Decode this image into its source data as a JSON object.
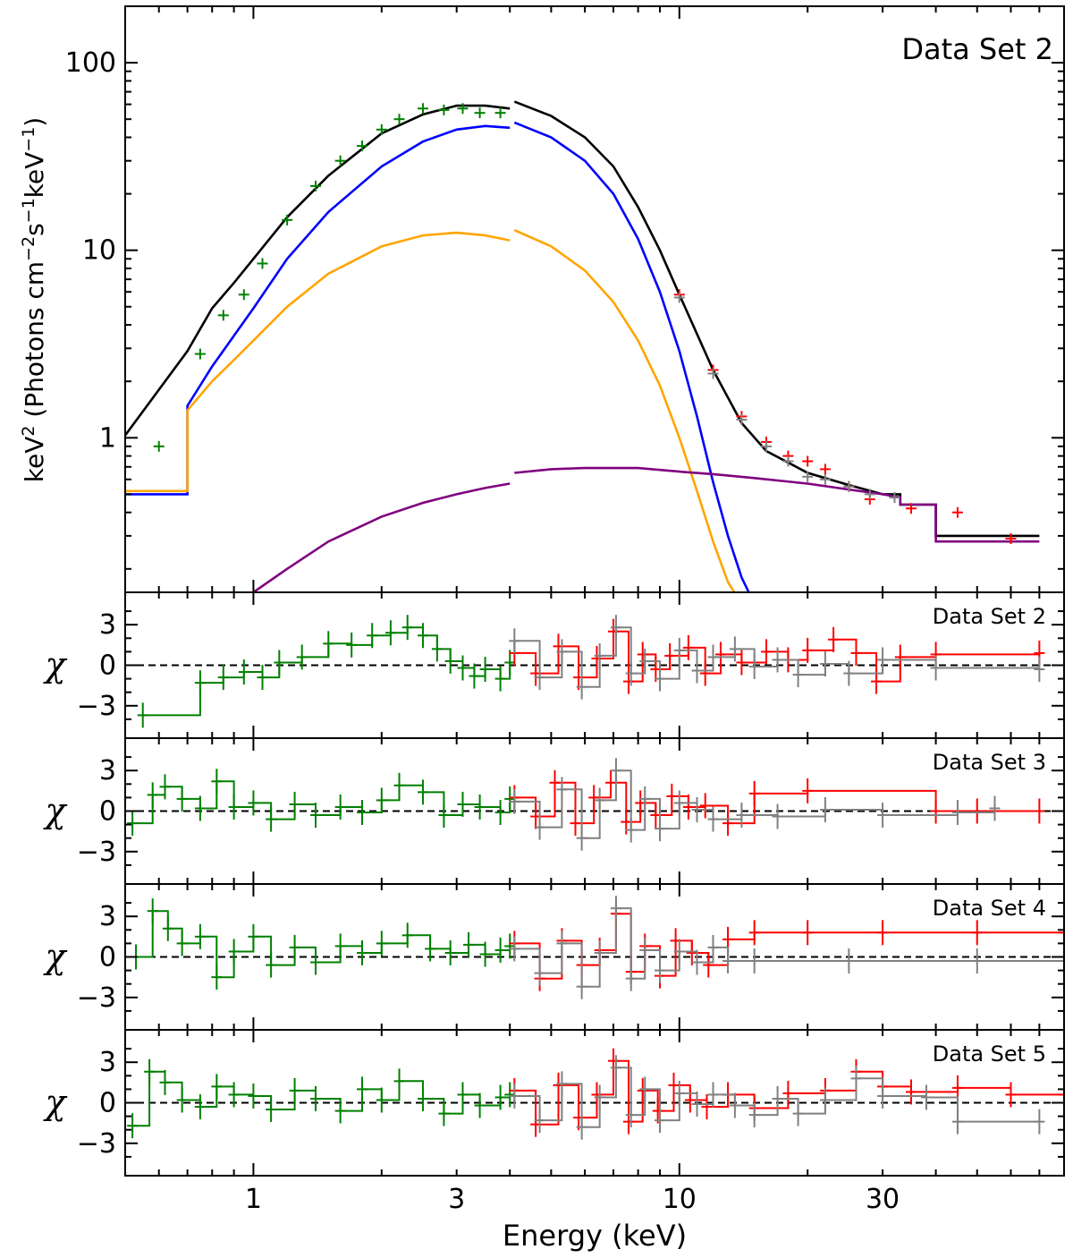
{
  "chart_data": [
    {
      "type": "line",
      "title": "Data Set 2",
      "xlabel": "",
      "ylabel_prefix": "keV",
      "ylabel_sup": "2",
      "ylabel_rest": " (Photons cm",
      "ylabel_sup2": "−2",
      "ylabel_mid": "s",
      "ylabel_sup3": "−1",
      "ylabel_mid2": "keV",
      "ylabel_sup4": "−1",
      "ylabel_end": ")",
      "xscale": "log",
      "yscale": "log",
      "xlim": [
        0.5,
        80
      ],
      "ylim": [
        0.15,
        200
      ],
      "yticks": [
        {
          "value": 1,
          "label": "1"
        },
        {
          "value": 10,
          "label": "10"
        },
        {
          "value": 100,
          "label": "100"
        }
      ],
      "series": [
        {
          "name": "total model (XRT)",
          "color": "#000000",
          "x": [
            0.5,
            0.7,
            0.8,
            0.9,
            1.0,
            1.2,
            1.5,
            2.0,
            2.5,
            3.0,
            3.5,
            4.0
          ],
          "y": [
            1.03,
            2.9,
            4.9,
            6.7,
            9.0,
            15.0,
            25.0,
            42.0,
            53.0,
            59.0,
            59.0,
            57.0
          ]
        },
        {
          "name": "total model (NuSTAR)",
          "color": "#000000",
          "x": [
            4.1,
            5,
            6,
            7,
            8,
            9,
            10,
            12,
            14,
            16,
            20,
            25,
            30
          ],
          "y": [
            62.0,
            52.0,
            40.0,
            28.0,
            17.0,
            10.0,
            5.8,
            2.3,
            1.2,
            0.85,
            0.65,
            0.56,
            0.5
          ]
        },
        {
          "name": "total model (NuSTAR) high",
          "color": "#000000",
          "x": [
            30,
            33,
            33,
            40,
            40,
            70
          ],
          "y": [
            0.5,
            0.5,
            0.44,
            0.44,
            0.3,
            0.3
          ]
        },
        {
          "name": "thermal component 1 (XRT)",
          "color": "#0000ff",
          "x": [
            0.5,
            0.7,
            0.7,
            0.8,
            0.9,
            1.0,
            1.2,
            1.5,
            2.0,
            2.5,
            3.0,
            3.5,
            4.0
          ],
          "y": [
            0.5,
            0.5,
            1.48,
            2.4,
            3.5,
            4.9,
            9.0,
            16.0,
            28.0,
            38.0,
            44.0,
            46.0,
            45.0
          ]
        },
        {
          "name": "thermal component 1 (NuSTAR)",
          "color": "#0000ff",
          "x": [
            4.1,
            5,
            6,
            7,
            8,
            9,
            10,
            11,
            12,
            13,
            14,
            15
          ],
          "y": [
            48.0,
            40.0,
            30.0,
            20.0,
            11.5,
            6.0,
            2.9,
            1.3,
            0.58,
            0.3,
            0.18,
            0.13
          ]
        },
        {
          "name": "thermal component 2 (XRT)",
          "color": "#ffa500",
          "x": [
            0.5,
            0.7,
            0.7,
            0.8,
            0.9,
            1.0,
            1.2,
            1.5,
            2.0,
            2.5,
            3.0,
            3.5,
            4.0
          ],
          "y": [
            0.52,
            0.52,
            1.4,
            2.0,
            2.6,
            3.3,
            5.0,
            7.5,
            10.5,
            12.0,
            12.4,
            12.0,
            11.3
          ]
        },
        {
          "name": "thermal component 2 (NuSTAR)",
          "color": "#ffa500",
          "x": [
            4.1,
            5,
            6,
            7,
            8,
            9,
            10,
            11,
            12,
            13,
            14
          ],
          "y": [
            12.8,
            10.5,
            7.8,
            5.3,
            3.3,
            1.9,
            1.0,
            0.52,
            0.28,
            0.17,
            0.13
          ]
        },
        {
          "name": "power-law component (XRT)",
          "color": "#800080",
          "x": [
            1.0,
            1.2,
            1.5,
            2.0,
            2.5,
            3.0,
            3.5,
            4.0
          ],
          "y": [
            0.15,
            0.2,
            0.28,
            0.38,
            0.45,
            0.5,
            0.54,
            0.57
          ]
        },
        {
          "name": "power-law component (NuSTAR)",
          "color": "#800080",
          "x": [
            4.1,
            5,
            6,
            8,
            10,
            12,
            15,
            20,
            25,
            30,
            33,
            33,
            40,
            40,
            70
          ],
          "y": [
            0.65,
            0.68,
            0.69,
            0.69,
            0.66,
            0.64,
            0.61,
            0.57,
            0.53,
            0.5,
            0.48,
            0.44,
            0.44,
            0.28,
            0.28
          ]
        },
        {
          "name": "XRT data",
          "color": "#008000",
          "x": [
            0.6,
            0.75,
            0.85,
            0.95,
            1.05,
            1.2,
            1.4,
            1.6,
            1.8,
            2.0,
            2.2,
            2.5,
            2.8,
            3.1,
            3.4,
            3.8
          ],
          "y": [
            0.9,
            2.8,
            4.5,
            5.8,
            8.5,
            14.5,
            22.0,
            30.0,
            36.0,
            44.0,
            50.0,
            57.0,
            56.0,
            57.0,
            54.0,
            54.0
          ]
        },
        {
          "name": "FPMA data",
          "color": "#ff0000",
          "x": [
            10,
            12,
            14,
            16,
            18,
            20,
            22,
            25,
            28,
            35,
            45,
            60
          ],
          "y": [
            5.8,
            2.3,
            1.3,
            0.95,
            0.8,
            0.75,
            0.68,
            0.55,
            0.47,
            0.42,
            0.4,
            0.29
          ]
        },
        {
          "name": "FPMB data",
          "color": "#808080",
          "x": [
            10,
            12,
            14,
            16,
            18,
            20,
            22,
            25,
            28,
            32
          ],
          "y": [
            5.6,
            2.2,
            1.25,
            0.9,
            0.75,
            0.62,
            0.6,
            0.55,
            0.5,
            0.48
          ]
        }
      ]
    },
    {
      "type": "line",
      "title": "Data Set 2",
      "ylabel": "χ",
      "xscale": "log",
      "xlim": [
        0.5,
        80
      ],
      "ylim": [
        -5,
        5
      ],
      "yticks": [
        {
          "value": 3,
          "label": "3"
        },
        {
          "value": 0,
          "label": "0"
        },
        {
          "value": -3,
          "label": "−3"
        }
      ],
      "series": [
        {
          "name": "XRT",
          "color": "#008000",
          "x": [
            0.55,
            0.75,
            0.85,
            0.95,
            1.05,
            1.15,
            1.3,
            1.5,
            1.7,
            1.9,
            2.1,
            2.3,
            2.5,
            2.7,
            2.9,
            3.1,
            3.3,
            3.5,
            3.8,
            4.0
          ],
          "y": [
            -3.7,
            -1.3,
            -0.9,
            -0.5,
            -0.9,
            0.2,
            0.6,
            1.6,
            1.5,
            2.2,
            2.4,
            2.8,
            2.2,
            1.2,
            0.3,
            -0.2,
            -0.8,
            -0.3,
            -1.0,
            0.2
          ]
        },
        {
          "name": "FPMA",
          "color": "#ff0000",
          "x": [
            4.1,
            4.6,
            5.2,
            5.8,
            6.4,
            7.0,
            7.6,
            8.2,
            8.8,
            9.5,
            10.5,
            11.5,
            12.5,
            14,
            16,
            18,
            20,
            23,
            26,
            29,
            33,
            40,
            70
          ],
          "y": [
            0.9,
            -0.6,
            1.4,
            -0.9,
            0.5,
            2.5,
            -1.2,
            0.8,
            -0.3,
            0.7,
            1.3,
            -0.6,
            0.8,
            0.2,
            1.0,
            0.4,
            1.1,
            1.9,
            0.9,
            -1.2,
            0.6,
            0.8,
            0.9
          ]
        },
        {
          "name": "FPMB",
          "color": "#808080",
          "x": [
            4.1,
            4.7,
            5.3,
            5.9,
            6.5,
            7.1,
            7.7,
            8.3,
            9.0,
            10,
            11,
            12,
            13.5,
            15,
            17,
            19,
            22,
            25,
            30,
            40,
            70
          ],
          "y": [
            1.8,
            -0.9,
            1.0,
            -1.6,
            0.7,
            2.8,
            -0.6,
            0.3,
            -1.0,
            1.1,
            -0.4,
            0.6,
            1.2,
            -0.1,
            0.4,
            -0.7,
            0.1,
            -0.6,
            0.4,
            -0.2,
            -0.3
          ]
        }
      ]
    },
    {
      "type": "line",
      "title": "Data Set 3",
      "ylabel": "χ",
      "xscale": "log",
      "xlim": [
        0.5,
        80
      ],
      "ylim": [
        -5,
        5
      ],
      "yticks": [
        {
          "value": 3,
          "label": "3"
        },
        {
          "value": 0,
          "label": "0"
        },
        {
          "value": -3,
          "label": "−3"
        }
      ],
      "series": [
        {
          "name": "XRT",
          "color": "#008000",
          "x": [
            0.52,
            0.58,
            0.62,
            0.68,
            0.75,
            0.82,
            0.9,
            1.0,
            1.1,
            1.25,
            1.4,
            1.6,
            1.8,
            2.0,
            2.2,
            2.5,
            2.8,
            3.1,
            3.4,
            3.8,
            4.0
          ],
          "y": [
            -0.9,
            1.2,
            1.8,
            0.9,
            0.2,
            2.2,
            0.3,
            0.6,
            -0.6,
            0.5,
            -0.3,
            0.3,
            -0.1,
            0.8,
            1.9,
            1.4,
            -0.3,
            0.5,
            0.3,
            -0.1,
            0.9
          ]
        },
        {
          "name": "FPMA",
          "color": "#ff0000",
          "x": [
            4.1,
            4.6,
            5.1,
            5.7,
            6.3,
            6.9,
            7.5,
            8.1,
            8.8,
            9.6,
            10.5,
            11.5,
            13,
            15,
            20,
            40,
            50,
            70
          ],
          "y": [
            1.0,
            -0.4,
            2.1,
            -0.9,
            1.0,
            2.1,
            -0.8,
            0.6,
            -0.3,
            1.1,
            0.3,
            0.4,
            -0.9,
            1.3,
            1.5,
            0.0,
            0.0,
            0.0
          ]
        },
        {
          "name": "FPMB",
          "color": "#808080",
          "x": [
            4.1,
            4.7,
            5.3,
            5.9,
            6.5,
            7.1,
            7.7,
            8.3,
            9.0,
            10,
            11,
            12,
            14,
            17,
            22,
            30,
            45,
            55
          ],
          "y": [
            0.7,
            -1.2,
            1.6,
            -2.0,
            0.8,
            3.0,
            -1.4,
            0.9,
            -1.3,
            0.6,
            0.1,
            -0.6,
            -0.3,
            -0.4,
            0.1,
            -0.3,
            -0.1,
            0.2
          ]
        }
      ]
    },
    {
      "type": "line",
      "title": "Data Set 4",
      "ylabel": "χ",
      "xscale": "log",
      "xlim": [
        0.5,
        80
      ],
      "ylim": [
        -5,
        5
      ],
      "yticks": [
        {
          "value": 3,
          "label": "3"
        },
        {
          "value": 0,
          "label": "0"
        },
        {
          "value": -3,
          "label": "−3"
        }
      ],
      "series": [
        {
          "name": "XRT",
          "color": "#008000",
          "x": [
            0.53,
            0.58,
            0.63,
            0.68,
            0.75,
            0.82,
            0.9,
            1.0,
            1.1,
            1.25,
            1.4,
            1.6,
            1.8,
            2.0,
            2.3,
            2.6,
            2.9,
            3.2,
            3.5,
            3.8,
            4.0
          ],
          "y": [
            0.0,
            3.4,
            2.1,
            1.0,
            1.5,
            -1.5,
            0.4,
            1.5,
            -0.6,
            0.7,
            -0.4,
            0.8,
            0.3,
            1.0,
            1.6,
            0.6,
            0.3,
            0.9,
            0.2,
            0.5,
            0.8
          ]
        },
        {
          "name": "FPMA",
          "color": "#ff0000",
          "x": [
            4.1,
            4.7,
            5.3,
            5.9,
            6.5,
            7.1,
            7.7,
            8.3,
            9.0,
            9.8,
            10.7,
            11.7,
            13,
            15,
            20,
            30,
            50,
            80
          ],
          "y": [
            1.0,
            -1.6,
            1.2,
            -0.6,
            0.5,
            3.2,
            -1.1,
            0.8,
            -1.4,
            1.2,
            0.3,
            -0.6,
            1.3,
            1.8,
            1.8,
            1.8,
            1.8,
            1.8
          ]
        },
        {
          "name": "FPMB",
          "color": "#808080",
          "x": [
            4.1,
            4.7,
            5.3,
            5.9,
            6.5,
            7.1,
            7.7,
            8.3,
            9.0,
            10,
            11,
            12,
            13,
            15,
            25,
            50,
            80
          ],
          "y": [
            0.6,
            -1.2,
            1.0,
            -2.2,
            0.3,
            3.6,
            -1.6,
            0.5,
            -1.0,
            0.4,
            -0.4,
            0.7,
            -0.3,
            -0.3,
            -0.3,
            -0.3,
            -0.3
          ]
        }
      ]
    },
    {
      "type": "line",
      "title": "Data Set 5",
      "ylabel": "χ",
      "xscale": "log",
      "xlim": [
        0.5,
        80
      ],
      "ylim": [
        -5,
        5
      ],
      "yticks": [
        {
          "value": 3,
          "label": "3"
        },
        {
          "value": 0,
          "label": "0"
        },
        {
          "value": -3,
          "label": "−3"
        }
      ],
      "series": [
        {
          "name": "XRT",
          "color": "#008000",
          "x": [
            0.52,
            0.57,
            0.62,
            0.68,
            0.75,
            0.82,
            0.9,
            1.0,
            1.1,
            1.25,
            1.4,
            1.6,
            1.8,
            2.0,
            2.2,
            2.5,
            2.8,
            3.1,
            3.4,
            3.8,
            4.0
          ],
          "y": [
            -1.7,
            2.3,
            1.5,
            0.2,
            -0.3,
            1.2,
            0.6,
            0.5,
            -0.5,
            0.9,
            0.3,
            -0.6,
            1.0,
            0.2,
            1.6,
            0.3,
            -0.8,
            0.6,
            -0.2,
            0.4,
            0.6
          ]
        },
        {
          "name": "FPMA",
          "color": "#ff0000",
          "x": [
            4.1,
            4.6,
            5.2,
            5.8,
            6.4,
            7.0,
            7.6,
            8.2,
            8.9,
            9.7,
            10.6,
            11.6,
            13,
            15,
            18,
            22,
            26,
            30,
            35,
            45,
            60,
            80
          ],
          "y": [
            0.9,
            -1.6,
            1.3,
            -1.1,
            0.6,
            3.1,
            -1.4,
            0.9,
            -0.6,
            1.3,
            0.2,
            -0.3,
            0.6,
            -0.4,
            0.7,
            0.9,
            2.3,
            1.2,
            0.8,
            1.1,
            0.6,
            0.6
          ]
        },
        {
          "name": "FPMB",
          "color": "#808080",
          "x": [
            4.1,
            4.7,
            5.3,
            5.9,
            6.5,
            7.1,
            7.7,
            8.3,
            9.0,
            10,
            11,
            12,
            13.5,
            15,
            17,
            19,
            22,
            26,
            30,
            38,
            45,
            70
          ],
          "y": [
            0.5,
            -1.3,
            1.4,
            -1.8,
            0.4,
            2.6,
            -0.9,
            1.0,
            -1.3,
            0.7,
            -0.1,
            0.6,
            -0.2,
            -0.9,
            0.3,
            -0.8,
            0.2,
            1.8,
            0.5,
            0.4,
            -1.4,
            -1.4
          ]
        }
      ]
    }
  ],
  "shared_xaxis": {
    "xlabel": "Energy (keV)",
    "xticks": [
      {
        "value": 1,
        "label": "1"
      },
      {
        "value": 3,
        "label": "3"
      },
      {
        "value": 10,
        "label": "10"
      },
      {
        "value": 30,
        "label": "30"
      }
    ]
  }
}
